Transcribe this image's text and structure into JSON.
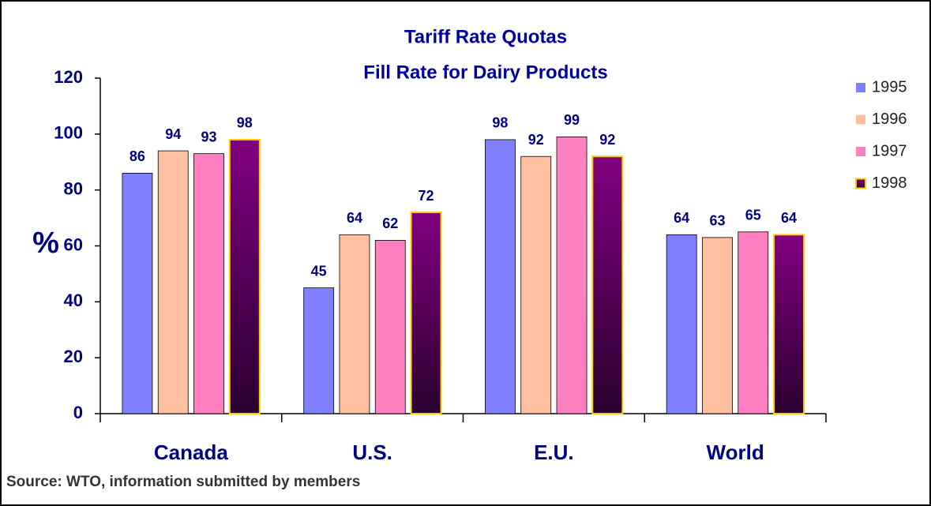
{
  "chart_data": {
    "type": "bar",
    "title": "Tariff Rate Quotas",
    "subtitle": "Fill Rate for Dairy Products",
    "y_label": "%",
    "source": "Source: WTO, information submitted by members",
    "categories": [
      "Canada",
      "U.S.",
      "E.U.",
      "World"
    ],
    "series": [
      {
        "name": "1995",
        "color": "#8080ff",
        "values": [
          86,
          45,
          98,
          64
        ]
      },
      {
        "name": "1996",
        "color": "#ffc0a0",
        "values": [
          94,
          64,
          92,
          63
        ]
      },
      {
        "name": "1997",
        "color": "#ff80c0",
        "values": [
          93,
          62,
          99,
          65
        ]
      },
      {
        "name": "1998",
        "color": "#800080",
        "edge": "#ffcc00",
        "values": [
          98,
          72,
          92,
          64
        ]
      }
    ],
    "ylim": [
      0,
      120
    ],
    "yticks": [
      0,
      20,
      40,
      60,
      80,
      100,
      120
    ],
    "grid": false,
    "legend": "right"
  }
}
